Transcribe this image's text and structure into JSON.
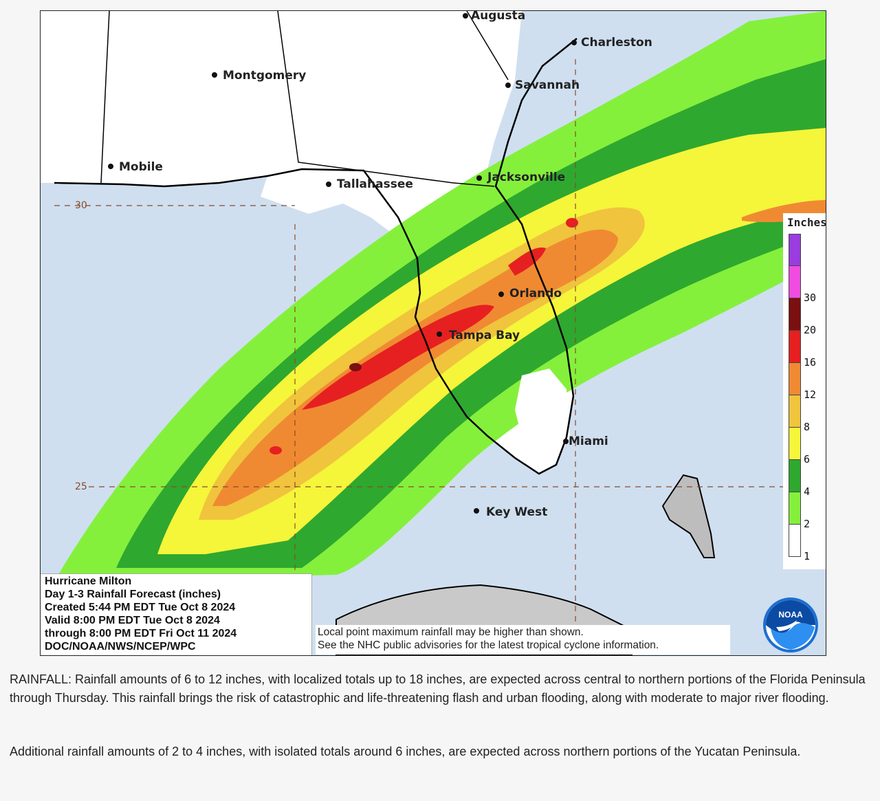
{
  "map": {
    "cities": [
      {
        "name": "Augusta"
      },
      {
        "name": "Charleston"
      },
      {
        "name": "Montgomery"
      },
      {
        "name": "Savannah"
      },
      {
        "name": "Mobile"
      },
      {
        "name": "Tallahassee"
      },
      {
        "name": "Jacksonville"
      },
      {
        "name": "Orlando"
      },
      {
        "name": "Tampa Bay"
      },
      {
        "name": "Miami"
      },
      {
        "name": "Key West"
      }
    ],
    "latitude_labels": [
      "30",
      "25"
    ],
    "colors": {
      "ocean": "#cfdff0",
      "land": "#ffffff",
      "bahamas_land": "#bdbdbd",
      "cuba_land": "#c9c9c9",
      "coast": "#000000",
      "grid": "#8a4a2a"
    }
  },
  "legend": {
    "title": "Inches",
    "bins": [
      {
        "label": "",
        "color": "#9a3ce0"
      },
      {
        "label": "30",
        "color": "#f04ce0"
      },
      {
        "label": "20",
        "color": "#7a1010"
      },
      {
        "label": "16",
        "color": "#e62020"
      },
      {
        "label": "12",
        "color": "#f08a32"
      },
      {
        "label": "8",
        "color": "#f0c43c"
      },
      {
        "label": "6",
        "color": "#f5f53a"
      },
      {
        "label": "4",
        "color": "#2fa82f"
      },
      {
        "label": "2",
        "color": "#84f03c"
      },
      {
        "label": "1",
        "color": "#ffffff"
      }
    ]
  },
  "info_box": {
    "lines": [
      "Hurricane Milton",
      "Day 1-3 Rainfall Forecast (inches)",
      "Created 5:44 PM EDT Tue Oct 8 2024",
      "Valid 8:00 PM EDT Tue Oct 8 2024",
      "through 8:00 PM EDT Fri Oct 11 2024",
      "DOC/NOAA/NWS/NCEP/WPC"
    ]
  },
  "disclaimer": {
    "line1": "Local point maximum rainfall may be higher than shown.",
    "line2": "See the NHC public advisories for the latest tropical cyclone information."
  },
  "logo": {
    "text": "NOAA"
  },
  "caption": {
    "paragraph1": "RAINFALL: Rainfall amounts of 6 to 12 inches, with localized totals up to 18 inches, are expected across central to northern portions of the Florida Peninsula through Thursday. This rainfall brings the risk of catastrophic and life-threatening flash and urban flooding, along with moderate to major river flooding.",
    "paragraph2": "Additional rainfall amounts of 2 to 4 inches, with isolated totals around 6 inches, are expected across northern portions of the Yucatan Peninsula."
  }
}
